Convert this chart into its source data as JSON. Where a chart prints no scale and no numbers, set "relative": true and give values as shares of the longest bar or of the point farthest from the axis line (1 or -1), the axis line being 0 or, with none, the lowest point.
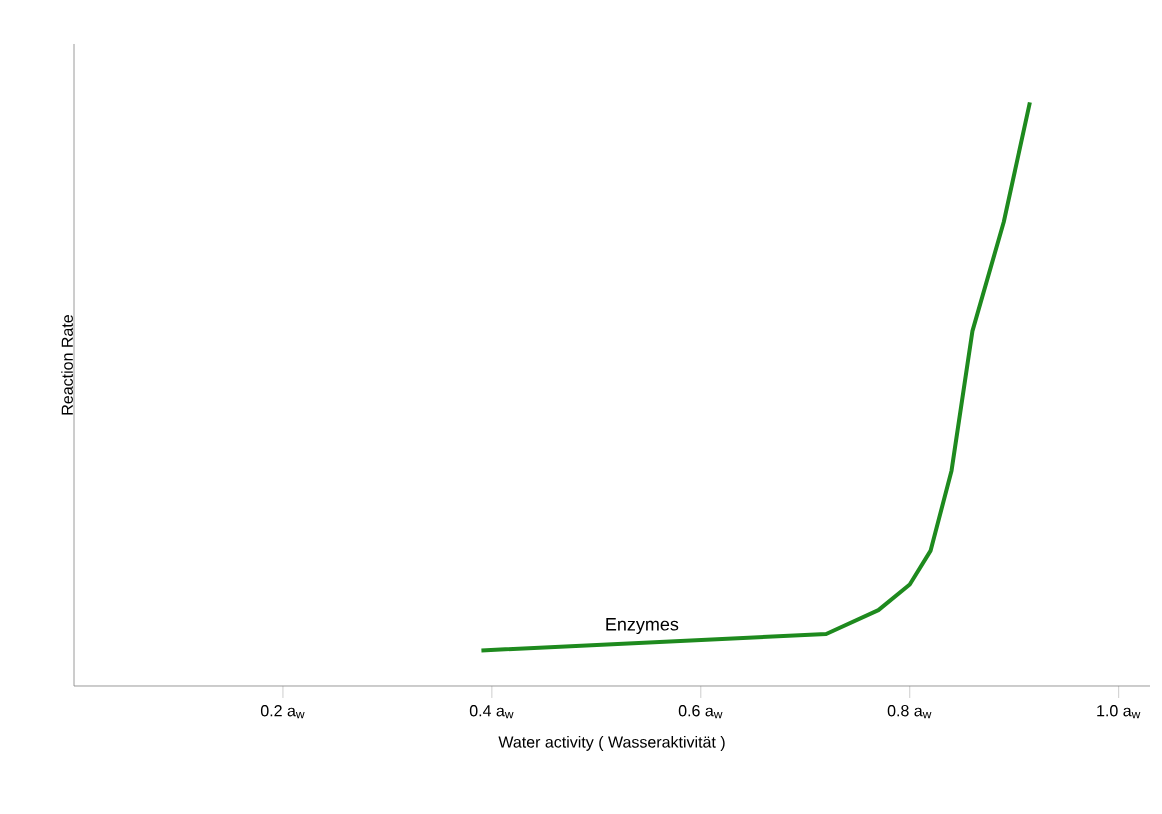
{
  "chart_data": {
    "type": "line",
    "relative": true,
    "xlabel": "Water activity  ( Wasseraktivität )",
    "ylabel": "Reaction Rate",
    "xlim": [
      0,
      1.03
    ],
    "xticks": [
      {
        "value": 0.2,
        "label": "0.2 a$_{w}$"
      },
      {
        "value": 0.4,
        "label": "0.4 a$_{w}$"
      },
      {
        "value": 0.6,
        "label": "0.6 a$_{w}$"
      },
      {
        "value": 0.8,
        "label": "0.8 a$_{w}$"
      },
      {
        "value": 1.0,
        "label": "1.0 a$_{w}$"
      }
    ],
    "series": [
      {
        "name": "Enzymes",
        "color": "#1e8a1e",
        "x": [
          0.39,
          0.72,
          0.77,
          0.8,
          0.82,
          0.84,
          0.86,
          0.89,
          0.915
        ],
        "values": [
          0.061,
          0.089,
          0.13,
          0.174,
          0.232,
          0.369,
          0.608,
          0.795,
          1
        ]
      }
    ],
    "grid": false,
    "legend": false,
    "marker": "none",
    "line_style": "solid"
  }
}
